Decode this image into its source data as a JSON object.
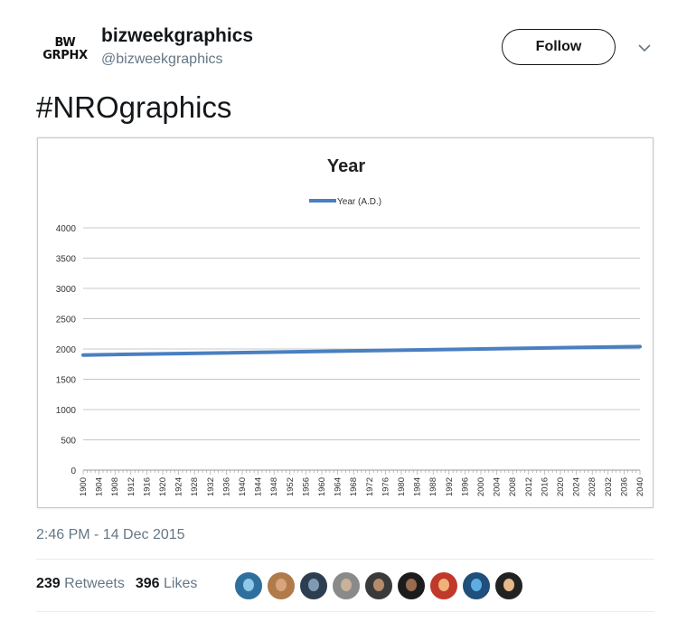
{
  "user": {
    "avatar_line1": "BW",
    "avatar_line2": "GRPHX",
    "display_name": "bizweekgraphics",
    "handle": "@bizweekgraphics"
  },
  "actions": {
    "follow_label": "Follow",
    "more_icon": "chevron-down-icon"
  },
  "tweet": {
    "text": "#NROgraphics",
    "timestamp": "2:46 PM - 14 Dec 2015"
  },
  "stats": {
    "retweets_count": "239",
    "retweets_label": "Retweets",
    "likes_count": "396",
    "likes_label": "Likes"
  },
  "likers": [
    {
      "bg": "#2e6f9e",
      "face": "#8ec7e8"
    },
    {
      "bg": "#b07a4a",
      "face": "#d7a47c"
    },
    {
      "bg": "#2c3e50",
      "face": "#7f9bb3"
    },
    {
      "bg": "#8a8a8a",
      "face": "#c9b29a"
    },
    {
      "bg": "#3a3a3a",
      "face": "#b58b6a"
    },
    {
      "bg": "#1c1c1c",
      "face": "#9a6b4e"
    },
    {
      "bg": "#c0392b",
      "face": "#f0b27a"
    },
    {
      "bg": "#1f4f7a",
      "face": "#5dade2"
    },
    {
      "bg": "#222222",
      "face": "#e6b98a"
    }
  ],
  "chart_data": {
    "type": "line",
    "title": "Year",
    "series": [
      {
        "name": "Year (A.D.)",
        "color": "#4a7fc1",
        "x_start": 1900,
        "x_end": 2040,
        "y_start": 1900,
        "y_end": 2040
      }
    ],
    "x_ticks": [
      1900,
      1904,
      1908,
      1912,
      1916,
      1920,
      1924,
      1928,
      1932,
      1936,
      1940,
      1944,
      1948,
      1952,
      1956,
      1960,
      1964,
      1968,
      1972,
      1976,
      1980,
      1984,
      1988,
      1992,
      1996,
      2000,
      2004,
      2008,
      2012,
      2016,
      2020,
      2024,
      2028,
      2032,
      2036,
      2040
    ],
    "y_ticks": [
      0,
      500,
      1000,
      1500,
      2000,
      2500,
      3000,
      3500,
      4000
    ],
    "xlim": [
      1900,
      2040
    ],
    "ylim": [
      0,
      4000
    ],
    "grid": "horizontal",
    "legend_position": "top"
  }
}
